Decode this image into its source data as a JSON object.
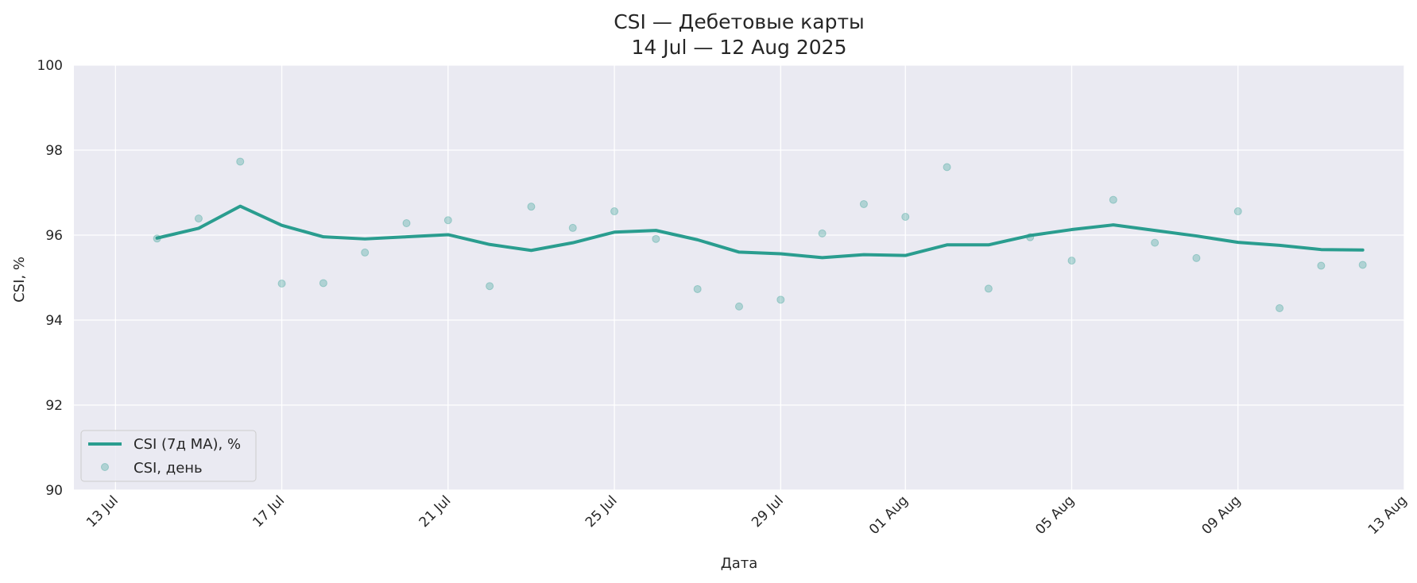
{
  "chart_data": {
    "type": "line",
    "title": "CSI — Дебетовые карты",
    "subtitle": "14 Jul — 12 Aug 2025",
    "xlabel": "Дата",
    "ylabel": "CSI, %",
    "ylim": [
      90,
      100
    ],
    "xlim": [
      "2025-07-12",
      "2025-08-13"
    ],
    "y_ticks": [
      90,
      92,
      94,
      96,
      98,
      100
    ],
    "x_ticks": [
      {
        "date": "2025-07-13",
        "label": "13 Jul"
      },
      {
        "date": "2025-07-17",
        "label": "17 Jul"
      },
      {
        "date": "2025-07-21",
        "label": "21 Jul"
      },
      {
        "date": "2025-07-25",
        "label": "25 Jul"
      },
      {
        "date": "2025-07-29",
        "label": "29 Jul"
      },
      {
        "date": "2025-08-01",
        "label": "01 Aug"
      },
      {
        "date": "2025-08-05",
        "label": "05 Aug"
      },
      {
        "date": "2025-08-09",
        "label": "09 Aug"
      },
      {
        "date": "2025-08-13",
        "label": "13 Aug"
      }
    ],
    "grid": true,
    "legend_position": "lower-left",
    "x": [
      "2025-07-14",
      "2025-07-15",
      "2025-07-16",
      "2025-07-17",
      "2025-07-18",
      "2025-07-19",
      "2025-07-20",
      "2025-07-21",
      "2025-07-22",
      "2025-07-23",
      "2025-07-24",
      "2025-07-25",
      "2025-07-26",
      "2025-07-27",
      "2025-07-28",
      "2025-07-29",
      "2025-07-30",
      "2025-07-31",
      "2025-08-01",
      "2025-08-02",
      "2025-08-03",
      "2025-08-04",
      "2025-08-05",
      "2025-08-06",
      "2025-08-07",
      "2025-08-08",
      "2025-08-09",
      "2025-08-10",
      "2025-08-11",
      "2025-08-12"
    ],
    "series": [
      {
        "name": "CSI (7д MA), %",
        "kind": "line",
        "color": "#2a9d8f",
        "values": [
          95.93,
          96.16,
          96.68,
          96.23,
          95.96,
          95.91,
          95.96,
          96.01,
          95.78,
          95.64,
          95.82,
          96.07,
          96.11,
          95.89,
          95.6,
          95.56,
          95.47,
          95.54,
          95.52,
          95.77,
          95.77,
          95.99,
          96.13,
          96.24,
          96.11,
          95.98,
          95.83,
          95.76,
          95.66,
          95.65
        ]
      },
      {
        "name": "CSI, день",
        "kind": "scatter",
        "color": "#2a9d8f",
        "values": [
          95.92,
          96.39,
          97.73,
          94.86,
          94.87,
          95.59,
          96.28,
          96.35,
          94.8,
          96.67,
          96.17,
          96.56,
          95.91,
          94.73,
          94.32,
          94.48,
          96.04,
          96.73,
          96.43,
          97.6,
          94.74,
          95.95,
          95.4,
          96.83,
          95.82,
          95.46,
          96.56,
          94.28,
          95.28,
          95.3
        ]
      }
    ]
  },
  "colors": {
    "plot_background": "#eaeaf2",
    "grid": "#ffffff",
    "accent": "#2a9d8f"
  }
}
